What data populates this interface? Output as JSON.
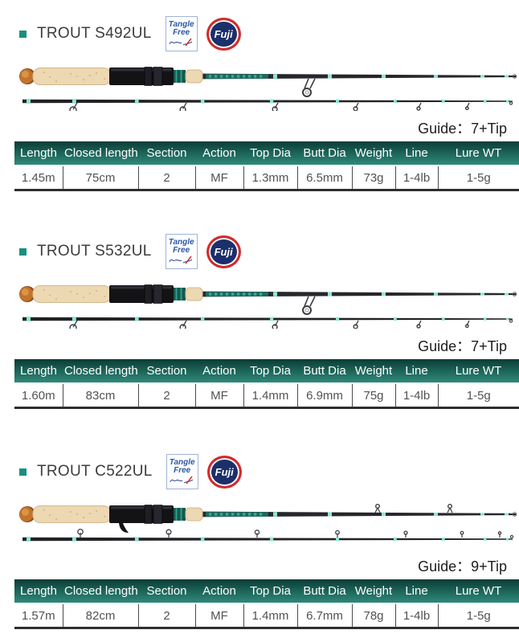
{
  "colors": {
    "accent_teal": "#1a8f7f",
    "header_gradient_top": "#0a3d37",
    "header_gradient_bottom": "#2f8a7b",
    "rod_wrap_teal": "#8ce8d6",
    "rod_blank_dark": "#27272b",
    "cork": "#ecd8b2",
    "butt_cap_amber": "#c4732a",
    "fuji_navy": "#1b2f6a",
    "fuji_red": "#d32b2b",
    "tangle_blue": "#2a57a8"
  },
  "badges": {
    "tangle_free_line1": "Tangle",
    "tangle_free_line2": "Free",
    "fuji_label": "Fuji"
  },
  "guide_label": "Guide：",
  "table": {
    "headers": [
      "Length",
      "Closed length",
      "Section",
      "Action",
      "Top Dia",
      "Butt Dia",
      "Weight",
      "Line",
      "Lure WT"
    ]
  },
  "sections": [
    {
      "title": "TROUT S492UL",
      "guide_value": "7+Tip",
      "rod_type": "spinning",
      "row": [
        "1.45m",
        "75cm",
        "2",
        "MF",
        "1.3mm",
        "6.5mm",
        "73g",
        "1-4lb",
        "1-5g"
      ]
    },
    {
      "title": "TROUT S532UL",
      "guide_value": "7+Tip",
      "rod_type": "spinning",
      "row": [
        "1.60m",
        "83cm",
        "2",
        "MF",
        "1.4mm",
        "6.9mm",
        "75g",
        "1-4lb",
        "1-5g"
      ]
    },
    {
      "title": "TROUT C522UL",
      "guide_value": "9+Tip",
      "rod_type": "casting",
      "row": [
        "1.57m",
        "82cm",
        "2",
        "MF",
        "1.4mm",
        "6.7mm",
        "78g",
        "1-4lb",
        "1-5g"
      ]
    }
  ]
}
